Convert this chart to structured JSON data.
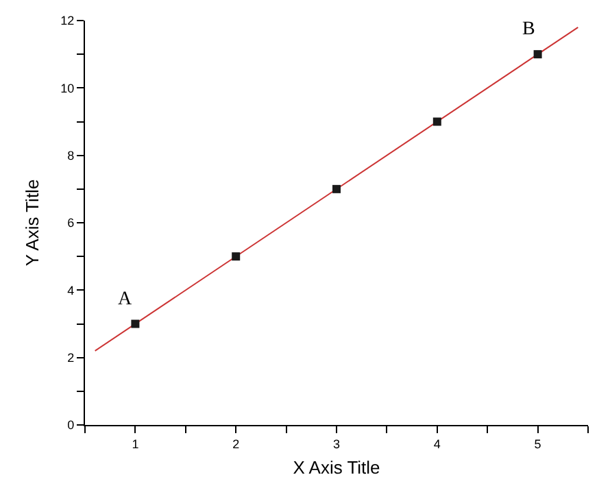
{
  "chart_data": {
    "type": "scatter",
    "xlabel": "X Axis Title",
    "ylabel": "Y Axis Title",
    "xlim": [
      0.5,
      5.5
    ],
    "ylim": [
      0,
      12
    ],
    "xticks": [
      {
        "value": 0.5,
        "label": null
      },
      1,
      {
        "value": 1.5,
        "label": null
      },
      2,
      {
        "value": 2.5,
        "label": null
      },
      3,
      {
        "value": 3.5,
        "label": null
      },
      4,
      {
        "value": 4.5,
        "label": null
      },
      5,
      {
        "value": 5.5,
        "label": null
      }
    ],
    "yticks": [
      0,
      {
        "value": 1,
        "label": null
      },
      2,
      {
        "value": 3,
        "label": null
      },
      4,
      {
        "value": 5,
        "label": null
      },
      6,
      {
        "value": 7,
        "label": null
      },
      8,
      {
        "value": 9,
        "label": null
      },
      10,
      {
        "value": 11,
        "label": null
      },
      12
    ],
    "series": [
      {
        "type": "line",
        "color": "#cc3333",
        "x": [
          0.6,
          5.4
        ],
        "values": [
          2.2,
          11.8
        ],
        "marker": "none",
        "line_style": "solid"
      },
      {
        "color": "#1a1a1a",
        "x": [
          1,
          2,
          3,
          4,
          5
        ],
        "values": [
          3,
          5,
          7,
          9,
          11
        ],
        "marker": "square"
      }
    ],
    "annotations": [
      {
        "text": "A",
        "x": 1,
        "y": 3
      },
      {
        "text": "B",
        "x": 5,
        "y": 11
      }
    ]
  }
}
